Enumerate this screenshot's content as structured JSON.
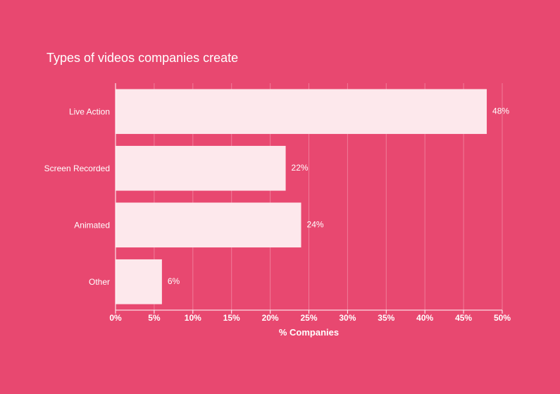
{
  "chart_data": {
    "type": "bar",
    "orientation": "horizontal",
    "title": "Types of videos companies create",
    "xlabel": "% Companies",
    "ylabel": "",
    "categories": [
      "Live Action",
      "Screen Recorded",
      "Animated",
      "Other"
    ],
    "values": [
      48,
      22,
      24,
      6
    ],
    "data_labels": [
      "48%",
      "22%",
      "24%",
      "6%"
    ],
    "xlim": [
      0,
      50
    ],
    "x_ticks": [
      0,
      5,
      10,
      15,
      20,
      25,
      30,
      35,
      40,
      45,
      50
    ],
    "x_tick_labels": [
      "0%",
      "5%",
      "10%",
      "15%",
      "20%",
      "25%",
      "30%",
      "35%",
      "40%",
      "45%",
      "50%"
    ],
    "grid": true,
    "legend": "none"
  },
  "colors": {
    "background": "#e84870",
    "bar": "#fde8ec",
    "text": "#ffffff",
    "gridline": "#f07c99",
    "axis": "#ffffff"
  }
}
